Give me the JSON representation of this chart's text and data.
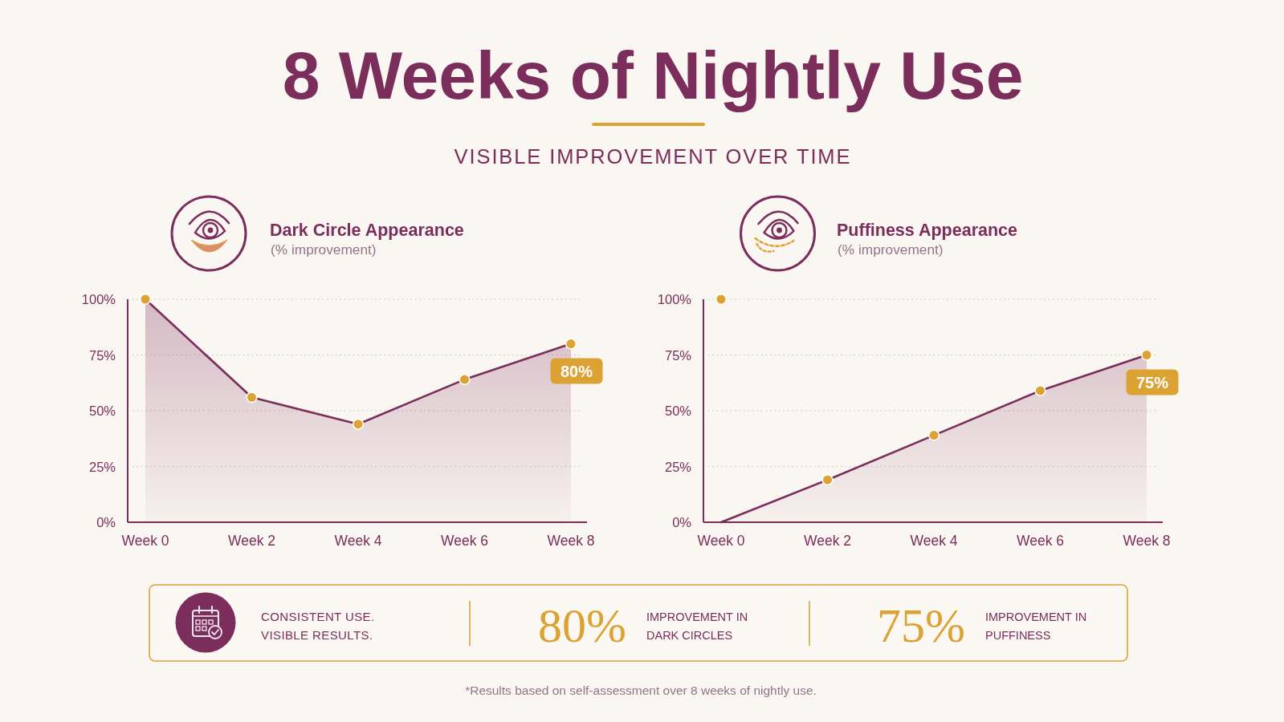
{
  "chart_data": [
    {
      "type": "other",
      "title": "8 Weeks of Nightly Use",
      "subtitle": "VISIBLE IMPROVEMENT OVER TIME"
    },
    {
      "type": "area",
      "title": "Dark Circle Appearance",
      "subtitle": "(% improvement)",
      "categories": [
        "Week 0",
        "Week 2",
        "Week 4",
        "Week 6",
        "Week 8"
      ],
      "series": [
        {
          "color": "#7b2d5b",
          "values": [
            100,
            56,
            44,
            64,
            80
          ]
        },
        {
          "type": "scatter",
          "color": "#dca233",
          "marker": "circle",
          "values": [
            100,
            56,
            44,
            64,
            80
          ],
          "value_labels": [
            null,
            null,
            null,
            null,
            "80%"
          ]
        }
      ],
      "ylim": [
        0,
        100
      ],
      "yticks": [
        {
          "value": 0,
          "label": "0%"
        },
        {
          "value": 25,
          "label": "25%"
        },
        {
          "value": 50,
          "label": "50%"
        },
        {
          "value": 75,
          "label": "75%"
        },
        {
          "value": 100,
          "label": "100%"
        }
      ],
      "grid": "y"
    },
    {
      "type": "area",
      "title": "Puffiness Appearance",
      "subtitle": "(% improvement)",
      "categories": [
        "Week 0",
        "Week 2",
        "Week 4",
        "Week 6",
        "Week 8"
      ],
      "series": [
        {
          "color": "#7b2d5b",
          "values": [
            0,
            19,
            39,
            59,
            75
          ]
        },
        {
          "type": "scatter",
          "color": "#dca233",
          "marker": "circle",
          "values": [
            100,
            19,
            39,
            59,
            75
          ],
          "value_labels": [
            null,
            null,
            null,
            null,
            "75%"
          ]
        }
      ],
      "ylim": [
        0,
        100
      ],
      "yticks": [
        {
          "value": 0,
          "label": "0%"
        },
        {
          "value": 25,
          "label": "25%"
        },
        {
          "value": 50,
          "label": "50%"
        },
        {
          "value": 75,
          "label": "75%"
        },
        {
          "value": 100,
          "label": "100%"
        }
      ],
      "grid": "y"
    },
    {
      "type": "other",
      "annotations": [
        "CONSISTENT USE.",
        "VISIBLE RESULTS.",
        "80%",
        "IMPROVEMENT IN",
        "DARK CIRCLES",
        "75%",
        "IMPROVEMENT IN",
        "PUFFINESS",
        "*Results based on self-assessment over 8 weeks of nightly use."
      ]
    }
  ]
}
